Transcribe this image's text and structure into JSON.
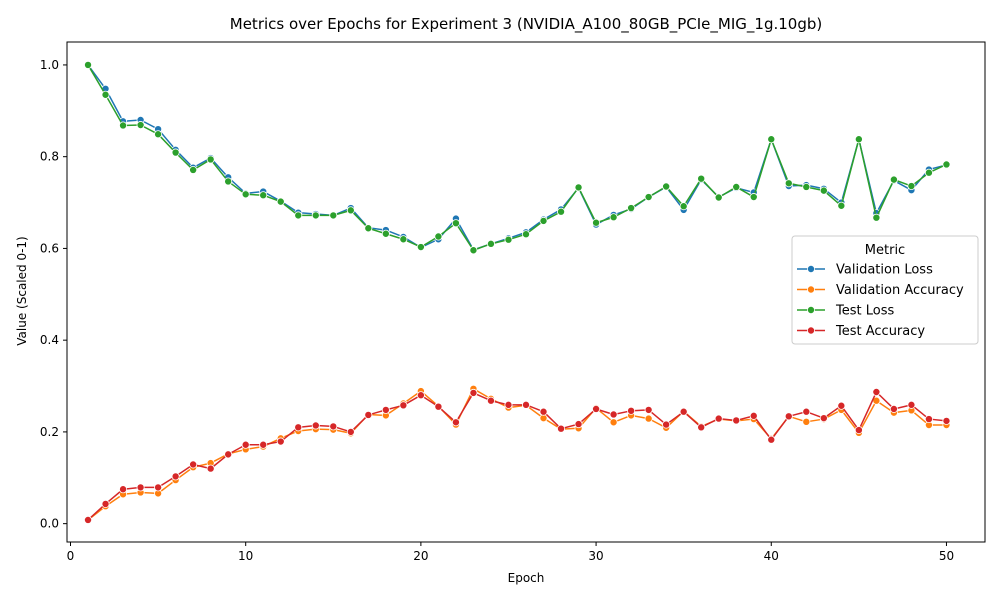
{
  "chart_data": {
    "type": "line",
    "title": "Metrics over Epochs for Experiment 3 (NVIDIA_A100_80GB_PCIe_MIG_1g.10gb)",
    "xlabel": "Epoch",
    "ylabel": "Value (Scaled 0-1)",
    "xlim": [
      -0.2,
      52.2
    ],
    "ylim": [
      -0.04,
      1.05
    ],
    "xticks": [
      0,
      10,
      20,
      30,
      40,
      50
    ],
    "yticks": [
      0.0,
      0.2,
      0.4,
      0.6,
      0.8,
      1.0
    ],
    "ytick_labels": [
      "0.0",
      "0.2",
      "0.4",
      "0.6",
      "0.8",
      "1.0"
    ],
    "grid": false,
    "legend": {
      "title": "Metric",
      "placement": "center-right"
    },
    "x": [
      1,
      2,
      3,
      4,
      5,
      6,
      7,
      8,
      9,
      10,
      11,
      12,
      13,
      14,
      15,
      16,
      17,
      18,
      19,
      20,
      21,
      22,
      23,
      24,
      25,
      26,
      27,
      28,
      29,
      30,
      31,
      32,
      33,
      34,
      35,
      36,
      37,
      38,
      39,
      40,
      41,
      42,
      43,
      44,
      45,
      46,
      47,
      48,
      49,
      50
    ],
    "series": [
      {
        "name": "Validation Loss",
        "color": "#1f77b4",
        "values": [
          1.0,
          0.948,
          0.877,
          0.88,
          0.86,
          0.815,
          0.776,
          0.797,
          0.755,
          0.72,
          0.724,
          0.703,
          0.678,
          0.675,
          0.672,
          0.688,
          0.645,
          0.64,
          0.625,
          0.602,
          0.62,
          0.665,
          0.597,
          0.61,
          0.622,
          0.635,
          0.663,
          0.685,
          0.732,
          0.652,
          0.673,
          0.686,
          0.712,
          0.734,
          0.684,
          0.75,
          0.712,
          0.732,
          0.722,
          0.838,
          0.736,
          0.738,
          0.73,
          0.7,
          0.838,
          0.677,
          0.748,
          0.727,
          0.772,
          0.782
        ]
      },
      {
        "name": "Validation Accuracy",
        "color": "#ff7f0e",
        "values": [
          0.008,
          0.038,
          0.064,
          0.068,
          0.066,
          0.095,
          0.123,
          0.132,
          0.152,
          0.162,
          0.168,
          0.186,
          0.202,
          0.206,
          0.205,
          0.197,
          0.238,
          0.236,
          0.262,
          0.289,
          0.256,
          0.216,
          0.294,
          0.272,
          0.253,
          0.258,
          0.23,
          0.206,
          0.208,
          0.252,
          0.221,
          0.236,
          0.229,
          0.209,
          0.245,
          0.212,
          0.228,
          0.224,
          0.228,
          0.185,
          0.234,
          0.222,
          0.228,
          0.248,
          0.198,
          0.268,
          0.242,
          0.247,
          0.215,
          0.215
        ]
      },
      {
        "name": "Test Loss",
        "color": "#2ca02c",
        "values": [
          1.0,
          0.935,
          0.868,
          0.869,
          0.849,
          0.809,
          0.771,
          0.794,
          0.746,
          0.718,
          0.716,
          0.702,
          0.672,
          0.672,
          0.672,
          0.683,
          0.644,
          0.632,
          0.62,
          0.603,
          0.626,
          0.655,
          0.596,
          0.61,
          0.619,
          0.631,
          0.66,
          0.68,
          0.733,
          0.656,
          0.668,
          0.688,
          0.712,
          0.735,
          0.692,
          0.752,
          0.711,
          0.734,
          0.712,
          0.838,
          0.742,
          0.734,
          0.726,
          0.693,
          0.838,
          0.667,
          0.75,
          0.736,
          0.765,
          0.783
        ]
      },
      {
        "name": "Test Accuracy",
        "color": "#d62728",
        "values": [
          0.008,
          0.043,
          0.075,
          0.079,
          0.079,
          0.103,
          0.129,
          0.12,
          0.151,
          0.172,
          0.172,
          0.179,
          0.21,
          0.214,
          0.212,
          0.2,
          0.237,
          0.248,
          0.258,
          0.28,
          0.255,
          0.221,
          0.285,
          0.268,
          0.259,
          0.259,
          0.244,
          0.207,
          0.217,
          0.25,
          0.238,
          0.246,
          0.248,
          0.216,
          0.244,
          0.21,
          0.229,
          0.225,
          0.235,
          0.183,
          0.234,
          0.244,
          0.23,
          0.257,
          0.204,
          0.287,
          0.25,
          0.259,
          0.228,
          0.224
        ]
      }
    ]
  }
}
